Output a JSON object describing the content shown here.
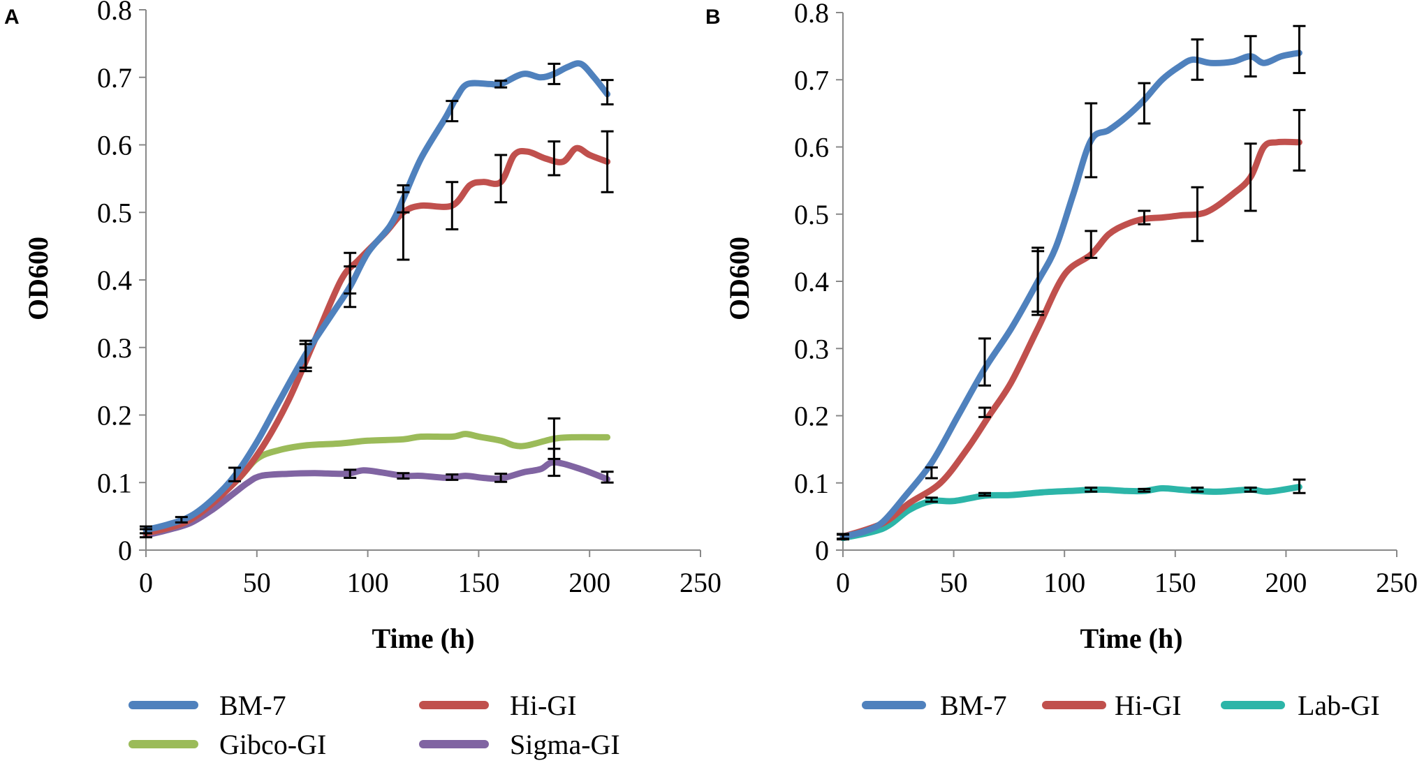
{
  "chart_data": [
    {
      "panel": "A",
      "type": "line",
      "xlabel": "Time (h)",
      "ylabel": "OD600",
      "xlim": [
        0,
        250
      ],
      "ylim": [
        0,
        0.8
      ],
      "xticks": [
        "0",
        "50",
        "100",
        "150",
        "200",
        "250"
      ],
      "yticks": [
        "0",
        "0.1",
        "0.2",
        "0.3",
        "0.4",
        "0.5",
        "0.6",
        "0.7",
        "0.8"
      ],
      "series": [
        {
          "name": "BM-7",
          "color": "#4F81BD",
          "points": [
            [
              0,
              0.03
            ],
            [
              10,
              0.038
            ],
            [
              20,
              0.05
            ],
            [
              30,
              0.075
            ],
            [
              40,
              0.11
            ],
            [
              50,
              0.16
            ],
            [
              60,
              0.22
            ],
            [
              72,
              0.29
            ],
            [
              84,
              0.35
            ],
            [
              92,
              0.39
            ],
            [
              100,
              0.44
            ],
            [
              110,
              0.48
            ],
            [
              116,
              0.52
            ],
            [
              124,
              0.58
            ],
            [
              135,
              0.64
            ],
            [
              140,
              0.67
            ],
            [
              145,
              0.69
            ],
            [
              155,
              0.69
            ],
            [
              160,
              0.69
            ],
            [
              170,
              0.705
            ],
            [
              178,
              0.7
            ],
            [
              184,
              0.705
            ],
            [
              190,
              0.715
            ],
            [
              196,
              0.72
            ],
            [
              202,
              0.7
            ],
            [
              208,
              0.675
            ]
          ],
          "error_bars": [
            [
              0,
              0.03,
              0.005
            ],
            [
              16,
              0.045,
              0.004
            ],
            [
              40,
              0.112,
              0.01
            ],
            [
              72,
              0.29,
              0.02
            ],
            [
              92,
              0.39,
              0.03
            ],
            [
              116,
              0.52,
              0.02
            ],
            [
              138,
              0.65,
              0.015
            ],
            [
              160,
              0.69,
              0.005
            ],
            [
              184,
              0.705,
              0.015
            ],
            [
              208,
              0.678,
              0.018
            ]
          ]
        },
        {
          "name": "Hi-GI",
          "color": "#C0504D",
          "points": [
            [
              0,
              0.025
            ],
            [
              20,
              0.045
            ],
            [
              40,
              0.1
            ],
            [
              52,
              0.15
            ],
            [
              64,
              0.22
            ],
            [
              76,
              0.31
            ],
            [
              88,
              0.4
            ],
            [
              96,
              0.43
            ],
            [
              108,
              0.47
            ],
            [
              116,
              0.5
            ],
            [
              124,
              0.51
            ],
            [
              138,
              0.51
            ],
            [
              146,
              0.54
            ],
            [
              152,
              0.545
            ],
            [
              160,
              0.545
            ],
            [
              166,
              0.585
            ],
            [
              172,
              0.59
            ],
            [
              180,
              0.58
            ],
            [
              188,
              0.575
            ],
            [
              194,
              0.595
            ],
            [
              200,
              0.585
            ],
            [
              208,
              0.575
            ]
          ],
          "error_bars": [
            [
              72,
              0.285,
              0.02
            ],
            [
              92,
              0.41,
              0.03
            ],
            [
              116,
              0.48,
              0.05
            ],
            [
              138,
              0.51,
              0.035
            ],
            [
              160,
              0.55,
              0.035
            ],
            [
              184,
              0.58,
              0.025
            ],
            [
              208,
              0.575,
              0.045
            ]
          ]
        },
        {
          "name": "Gibco-GI",
          "color": "#9BBB59",
          "points": [
            [
              0,
              0.025
            ],
            [
              20,
              0.045
            ],
            [
              40,
              0.1
            ],
            [
              50,
              0.135
            ],
            [
              60,
              0.148
            ],
            [
              72,
              0.155
            ],
            [
              88,
              0.158
            ],
            [
              100,
              0.162
            ],
            [
              116,
              0.164
            ],
            [
              124,
              0.168
            ],
            [
              138,
              0.168
            ],
            [
              144,
              0.172
            ],
            [
              150,
              0.168
            ],
            [
              160,
              0.162
            ],
            [
              166,
              0.155
            ],
            [
              172,
              0.155
            ],
            [
              184,
              0.165
            ],
            [
              192,
              0.167
            ],
            [
              208,
              0.167
            ]
          ],
          "error_bars": [
            [
              184,
              0.165,
              0.03
            ]
          ]
        },
        {
          "name": "Sigma-GI",
          "color": "#8064A2",
          "points": [
            [
              0,
              0.022
            ],
            [
              10,
              0.03
            ],
            [
              20,
              0.04
            ],
            [
              30,
              0.06
            ],
            [
              40,
              0.085
            ],
            [
              46,
              0.1
            ],
            [
              52,
              0.11
            ],
            [
              64,
              0.113
            ],
            [
              76,
              0.114
            ],
            [
              90,
              0.113
            ],
            [
              98,
              0.118
            ],
            [
              106,
              0.115
            ],
            [
              116,
              0.11
            ],
            [
              124,
              0.11
            ],
            [
              136,
              0.107
            ],
            [
              144,
              0.11
            ],
            [
              152,
              0.107
            ],
            [
              160,
              0.106
            ],
            [
              170,
              0.115
            ],
            [
              178,
              0.12
            ],
            [
              184,
              0.13
            ],
            [
              196,
              0.12
            ],
            [
              208,
              0.105
            ]
          ],
          "error_bars": [
            [
              0,
              0.025,
              0.006
            ],
            [
              92,
              0.113,
              0.006
            ],
            [
              116,
              0.11,
              0.004
            ],
            [
              138,
              0.108,
              0.004
            ],
            [
              160,
              0.107,
              0.006
            ],
            [
              184,
              0.13,
              0.02
            ],
            [
              208,
              0.108,
              0.008
            ]
          ]
        }
      ]
    },
    {
      "panel": "B",
      "type": "line",
      "xlabel": "Time (h)",
      "ylabel": "OD600",
      "xlim": [
        0,
        250
      ],
      "ylim": [
        0,
        0.8
      ],
      "xticks": [
        "0",
        "50",
        "100",
        "150",
        "200",
        "250"
      ],
      "yticks": [
        "0",
        "0.1",
        "0.2",
        "0.3",
        "0.4",
        "0.5",
        "0.6",
        "0.7",
        "0.8"
      ],
      "series": [
        {
          "name": "BM-7",
          "color": "#4F81BD",
          "points": [
            [
              0,
              0.02
            ],
            [
              10,
              0.028
            ],
            [
              18,
              0.042
            ],
            [
              28,
              0.08
            ],
            [
              40,
              0.13
            ],
            [
              52,
              0.2
            ],
            [
              64,
              0.27
            ],
            [
              76,
              0.33
            ],
            [
              88,
              0.4
            ],
            [
              96,
              0.45
            ],
            [
              104,
              0.53
            ],
            [
              112,
              0.61
            ],
            [
              120,
              0.625
            ],
            [
              128,
              0.645
            ],
            [
              136,
              0.67
            ],
            [
              144,
              0.7
            ],
            [
              152,
              0.72
            ],
            [
              158,
              0.73
            ],
            [
              166,
              0.725
            ],
            [
              176,
              0.727
            ],
            [
              184,
              0.735
            ],
            [
              190,
              0.725
            ],
            [
              198,
              0.735
            ],
            [
              206,
              0.74
            ]
          ],
          "error_bars": [
            [
              0,
              0.02,
              0.004
            ],
            [
              40,
              0.115,
              0.008
            ],
            [
              64,
              0.28,
              0.035
            ],
            [
              88,
              0.4,
              0.05
            ],
            [
              112,
              0.61,
              0.055
            ],
            [
              136,
              0.665,
              0.03
            ],
            [
              160,
              0.73,
              0.03
            ],
            [
              184,
              0.735,
              0.03
            ],
            [
              206,
              0.745,
              0.035
            ]
          ]
        },
        {
          "name": "Hi-GI",
          "color": "#C0504D",
          "points": [
            [
              0,
              0.02
            ],
            [
              18,
              0.04
            ],
            [
              30,
              0.07
            ],
            [
              44,
              0.1
            ],
            [
              56,
              0.15
            ],
            [
              66,
              0.2
            ],
            [
              76,
              0.25
            ],
            [
              88,
              0.33
            ],
            [
              100,
              0.41
            ],
            [
              112,
              0.44
            ],
            [
              120,
              0.47
            ],
            [
              128,
              0.485
            ],
            [
              136,
              0.493
            ],
            [
              144,
              0.495
            ],
            [
              152,
              0.498
            ],
            [
              164,
              0.503
            ],
            [
              176,
              0.53
            ],
            [
              184,
              0.555
            ],
            [
              190,
              0.6
            ],
            [
              196,
              0.607
            ],
            [
              206,
              0.607
            ]
          ],
          "error_bars": [
            [
              64,
              0.205,
              0.007
            ],
            [
              88,
              0.4,
              0.045
            ],
            [
              112,
              0.455,
              0.02
            ],
            [
              136,
              0.495,
              0.01
            ],
            [
              160,
              0.5,
              0.04
            ],
            [
              184,
              0.555,
              0.05
            ],
            [
              206,
              0.61,
              0.045
            ]
          ]
        },
        {
          "name": "Lab-GI",
          "color": "#2CB5A8",
          "points": [
            [
              0,
              0.018
            ],
            [
              18,
              0.032
            ],
            [
              30,
              0.06
            ],
            [
              40,
              0.073
            ],
            [
              50,
              0.073
            ],
            [
              64,
              0.081
            ],
            [
              76,
              0.082
            ],
            [
              90,
              0.086
            ],
            [
              102,
              0.088
            ],
            [
              116,
              0.09
            ],
            [
              128,
              0.088
            ],
            [
              136,
              0.088
            ],
            [
              144,
              0.092
            ],
            [
              152,
              0.09
            ],
            [
              160,
              0.088
            ],
            [
              170,
              0.087
            ],
            [
              184,
              0.09
            ],
            [
              192,
              0.087
            ],
            [
              206,
              0.094
            ]
          ],
          "error_bars": [
            [
              0,
              0.02,
              0.003
            ],
            [
              40,
              0.075,
              0.003
            ],
            [
              64,
              0.083,
              0.002
            ],
            [
              112,
              0.09,
              0.003
            ],
            [
              136,
              0.089,
              0.002
            ],
            [
              160,
              0.09,
              0.003
            ],
            [
              184,
              0.09,
              0.003
            ],
            [
              206,
              0.095,
              0.01
            ]
          ]
        }
      ]
    }
  ]
}
